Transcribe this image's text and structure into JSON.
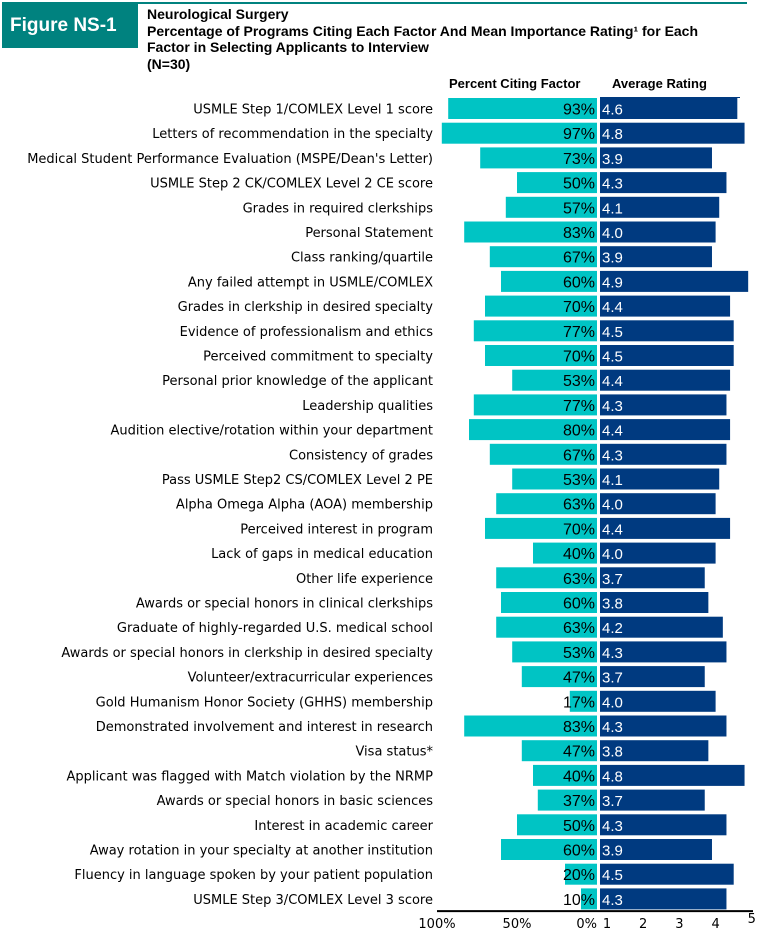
{
  "header": {
    "figure_label": "Figure NS-1",
    "specialty": "Neurological Surgery",
    "title_line1": "Percentage of Programs Citing Each Factor And Mean Importance Rating¹ for Each",
    "title_line2": "Factor in Selecting Applicants to Interview",
    "n": "(N=30)"
  },
  "colors": {
    "brand": "#00827f",
    "percent_bar": "#00c4c4",
    "rating_bar": "#003a80"
  },
  "chart_data": {
    "type": "bar",
    "title": "Percentage of Programs Citing Each Factor And Mean Importance Rating for Each Factor in Selecting Applicants to Interview",
    "subtitle": "Neurological Surgery (N=30)",
    "series": [
      {
        "name": "Percent Citing Factor",
        "unit": "%",
        "direction": "left",
        "xlim": [
          0,
          100
        ],
        "ticks": [
          "100%",
          "50%",
          "0%"
        ],
        "values": [
          93,
          97,
          73,
          50,
          57,
          83,
          67,
          60,
          70,
          77,
          70,
          53,
          77,
          80,
          67,
          53,
          63,
          70,
          40,
          63,
          60,
          63,
          53,
          47,
          17,
          83,
          47,
          40,
          37,
          50,
          60,
          20,
          10
        ]
      },
      {
        "name": "Average Rating",
        "direction": "right",
        "xlim": [
          1,
          5
        ],
        "ticks": [
          "1",
          "2",
          "3",
          "4",
          "5"
        ],
        "values": [
          4.6,
          4.8,
          3.9,
          4.3,
          4.1,
          4.0,
          3.9,
          4.9,
          4.4,
          4.5,
          4.5,
          4.4,
          4.3,
          4.4,
          4.3,
          4.1,
          4.0,
          4.4,
          4.0,
          3.7,
          3.8,
          4.2,
          4.3,
          3.7,
          4.0,
          4.3,
          3.8,
          4.8,
          3.7,
          4.3,
          3.9,
          4.5,
          4.3
        ]
      }
    ],
    "categories": [
      "USMLE Step 1/COMLEX Level 1 score",
      "Letters of recommendation in the specialty",
      "Medical Student Performance Evaluation (MSPE/Dean's Letter)",
      "USMLE Step 2 CK/COMLEX Level 2 CE score",
      "Grades in required clerkships",
      "Personal Statement",
      "Class ranking/quartile",
      "Any failed attempt in USMLE/COMLEX",
      "Grades in clerkship in desired specialty",
      "Evidence of professionalism and ethics",
      "Perceived commitment to specialty",
      "Personal prior knowledge of the applicant",
      "Leadership qualities",
      "Audition elective/rotation within your department",
      "Consistency of grades",
      "Pass USMLE Step2 CS/COMLEX Level 2 PE",
      "Alpha Omega Alpha (AOA) membership",
      "Perceived interest in program",
      "Lack of gaps in medical education",
      "Other life experience",
      "Awards or special honors in clinical clerkships",
      "Graduate of highly-regarded U.S. medical school",
      "Awards or special honors in clerkship in desired specialty",
      "Volunteer/extracurricular experiences",
      "Gold Humanism Honor Society (GHHS) membership",
      "Demonstrated involvement and interest in research",
      "Visa status*",
      "Applicant was flagged with Match violation by the NRMP",
      "Awards or special honors in basic sciences",
      "Interest in academic career",
      "Away rotation in your specialty at another institution",
      "Fluency in language spoken by your patient population",
      "USMLE Step 3/COMLEX Level 3 score"
    ],
    "grid": false,
    "legend": "none"
  }
}
